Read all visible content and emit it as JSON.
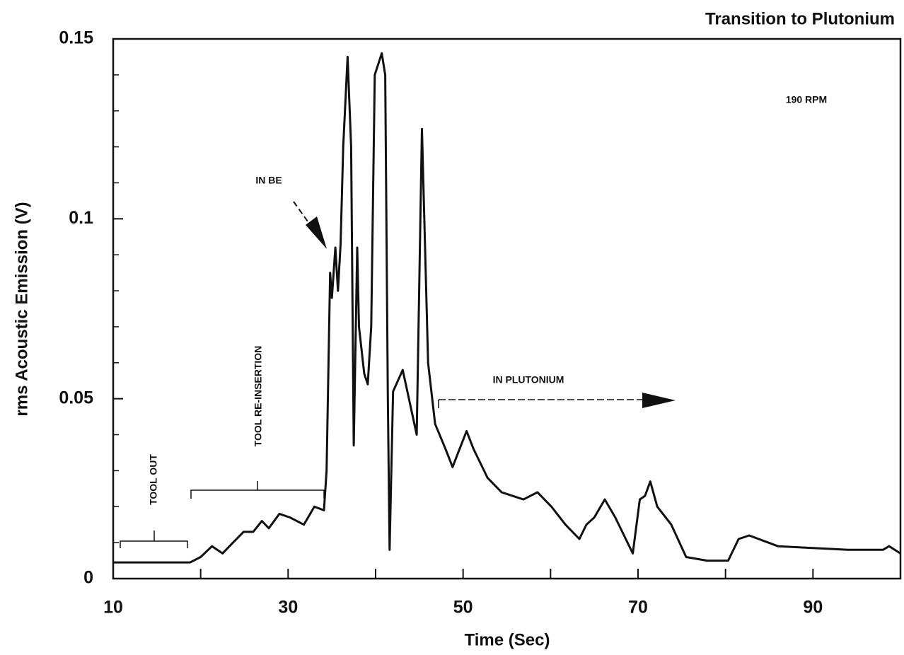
{
  "chart_data": {
    "type": "line",
    "title": "Transition to Plutonium",
    "x_label": "Time (Sec)",
    "y_label": "rms Acoustic Emission (V)",
    "annotations": [
      "190 RPM",
      "IN BE",
      "TOOL OUT",
      "TOOL RE-INSERTION",
      "IN PLUTONIUM"
    ],
    "color": "#111111",
    "xlim": [
      10,
      100
    ],
    "ylim": [
      0,
      0.15
    ],
    "xticks": [
      10,
      30,
      50,
      70,
      90
    ],
    "minor_xticks": [
      20,
      40,
      60,
      80,
      100
    ],
    "yticks": [
      0,
      0.05,
      0.1,
      0.15
    ],
    "minor_yticks": [
      0.01,
      0.02,
      0.03,
      0.04,
      0.06,
      0.07,
      0.08,
      0.09,
      0.11,
      0.12,
      0.13,
      0.14
    ],
    "x": [
      10,
      18.8,
      20,
      21.3,
      22.5,
      23.7,
      24.9,
      26,
      27,
      27.8,
      29,
      30.2,
      31.8,
      33,
      34.1,
      34.4,
      34.8,
      35,
      35.4,
      35.7,
      36,
      36.3,
      36.8,
      37.2,
      37.5,
      37.9,
      38.1,
      38.7,
      39.1,
      39.5,
      39.9,
      40.7,
      41.1,
      41.4,
      41.6,
      42,
      43.1,
      44.7,
      45.3,
      46,
      46.8,
      48,
      48.8,
      50.4,
      51.2,
      52.8,
      54.4,
      56.9,
      58.5,
      60.1,
      61.7,
      63.3,
      64.1,
      65,
      66.2,
      67.4,
      69.4,
      70.2,
      70.8,
      71.4,
      72.2,
      73.8,
      75.5,
      77.9,
      80.3,
      81.5,
      82.7,
      86,
      90,
      94,
      98,
      98.7,
      100
    ],
    "values": [
      0.0045,
      0.0045,
      0.006,
      0.009,
      0.007,
      0.01,
      0.013,
      0.013,
      0.016,
      0.014,
      0.018,
      0.017,
      0.015,
      0.02,
      0.019,
      0.03,
      0.085,
      0.078,
      0.092,
      0.08,
      0.093,
      0.12,
      0.145,
      0.12,
      0.037,
      0.092,
      0.07,
      0.057,
      0.054,
      0.07,
      0.14,
      0.146,
      0.14,
      0.05,
      0.008,
      0.052,
      0.058,
      0.04,
      0.125,
      0.06,
      0.043,
      0.036,
      0.031,
      0.041,
      0.036,
      0.028,
      0.024,
      0.022,
      0.024,
      0.02,
      0.015,
      0.011,
      0.015,
      0.017,
      0.022,
      0.017,
      0.007,
      0.022,
      0.023,
      0.027,
      0.02,
      0.015,
      0.006,
      0.005,
      0.005,
      0.011,
      0.012,
      0.009,
      0.0085,
      0.008,
      0.008,
      0.009,
      0.007
    ]
  }
}
